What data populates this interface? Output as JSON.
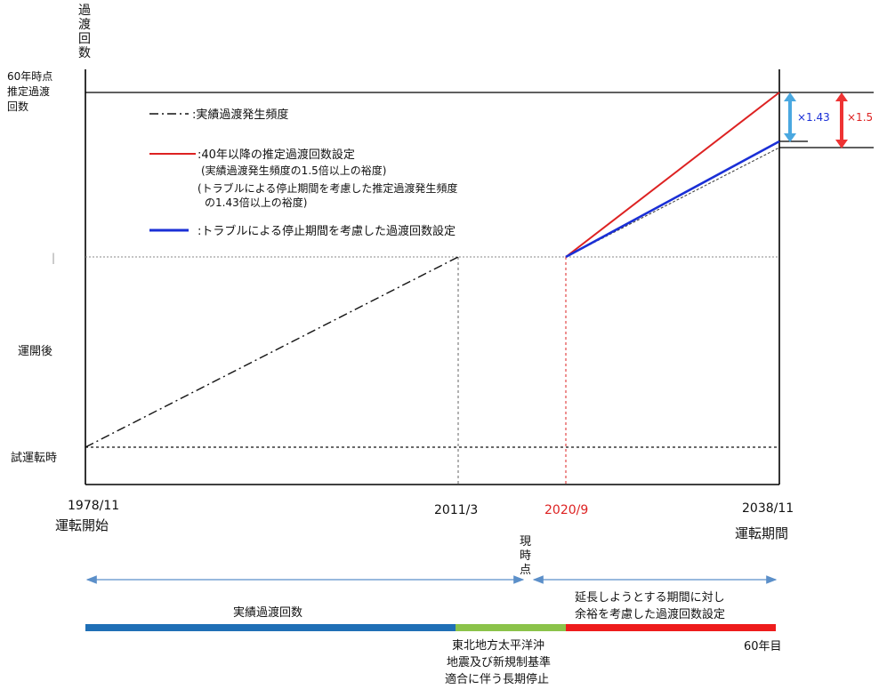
{
  "y_axis": {
    "title_chars": [
      "過",
      "渡",
      "回",
      "数"
    ],
    "label_60yr": [
      "60年時点",
      "推定過渡",
      "回数"
    ],
    "label_after_start": "運開後",
    "label_trial": "試運転時",
    "tick_mark": "|"
  },
  "x_axis": {
    "start_date": "1978/11",
    "start_label": "運転開始",
    "date_2011": "2011/3",
    "date_2020": "2020/9",
    "end_date": "2038/11",
    "end_label": "運転期間",
    "now_chars": [
      "現",
      "時",
      "点"
    ]
  },
  "legend": {
    "actual": ":実績過渡発生頻度",
    "red_main": ":40年以降の推定過渡回数設定",
    "red_note1": "(実績過渡発生頻度の1.5倍以上の裕度)",
    "red_note2": "(トラブルによる停止期間を考慮した推定過渡発生頻度",
    "red_note3": "の1.43倍以上の裕度)",
    "blue_main": ":トラブルによる停止期間を考慮した過渡回数設定"
  },
  "multipliers": {
    "blue": "×1.43",
    "red": "×1.5"
  },
  "timeline": {
    "blue_label": "実績過渡回数",
    "green_label": [
      "東北地方太平洋沖",
      "地震及び新規制基準",
      "適合に伴う長期停止"
    ],
    "red_label": [
      "延長しようとする期間に対し",
      "余裕を考慮した過渡回数設定"
    ],
    "end_label": "60年目"
  },
  "colors": {
    "red": "#dd2222",
    "blue": "#1a2fd6",
    "light_blue": "#4aa8e0",
    "timeline_blue": "#1f6fb6",
    "timeline_green": "#8bc34a",
    "timeline_red": "#ee1c1c",
    "arrow": "#5b8fc9"
  }
}
